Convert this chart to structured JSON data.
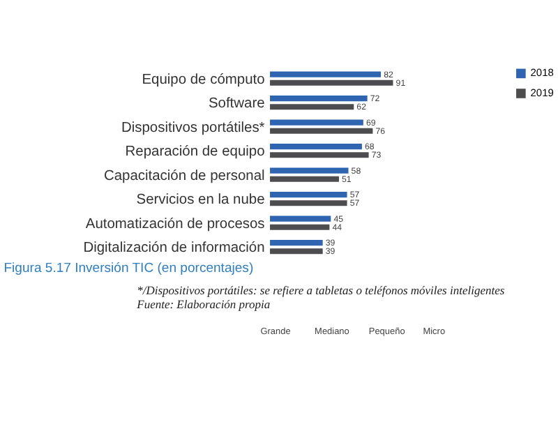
{
  "chart_data": {
    "type": "bar",
    "orientation": "horizontal",
    "title": "Figura 5.17 Inversión TIC (en porcentajes)",
    "categories": [
      "Equipo de cómputo",
      "Software",
      "Dispositivos portátiles*",
      "Reparación de equipo",
      "Capacitación de personal",
      "Servicios en la nube",
      "Automatización de procesos",
      "Digitalización de información"
    ],
    "series": [
      {
        "name": "2018",
        "color": "#2f64b0",
        "values": [
          82,
          72,
          69,
          68,
          58,
          57,
          45,
          39
        ]
      },
      {
        "name": "2019",
        "color": "#4d4d4f",
        "values": [
          91,
          62,
          76,
          73,
          51,
          57,
          44,
          39
        ]
      }
    ],
    "data_labels": true,
    "legend": "right",
    "grid": false,
    "annotations": [
      "*/Dispositivos portátiles: se refiere a tabletas o teléfonos móviles inteligentes",
      "Fuente: Elaboración propia",
      "Grande",
      "Mediano",
      "Pequeño",
      "Micro"
    ]
  }
}
